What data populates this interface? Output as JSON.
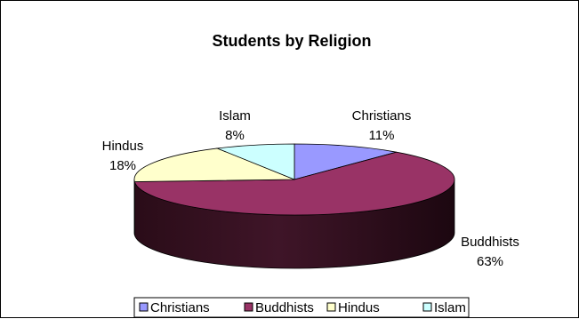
{
  "chart_data": {
    "type": "pie",
    "title": "Students by Religion",
    "categories": [
      "Christians",
      "Buddhists",
      "Hindus",
      "Islam"
    ],
    "values": [
      11,
      63,
      18,
      8
    ],
    "value_labels": [
      "11%",
      "63%",
      "18%",
      "8%"
    ],
    "colors": {
      "Christians": "#9999ff",
      "Buddhists": "#993366",
      "Hindus": "#ffffcc",
      "Islam": "#ccffff"
    },
    "legend_placement": "bottom",
    "three_d": true
  }
}
